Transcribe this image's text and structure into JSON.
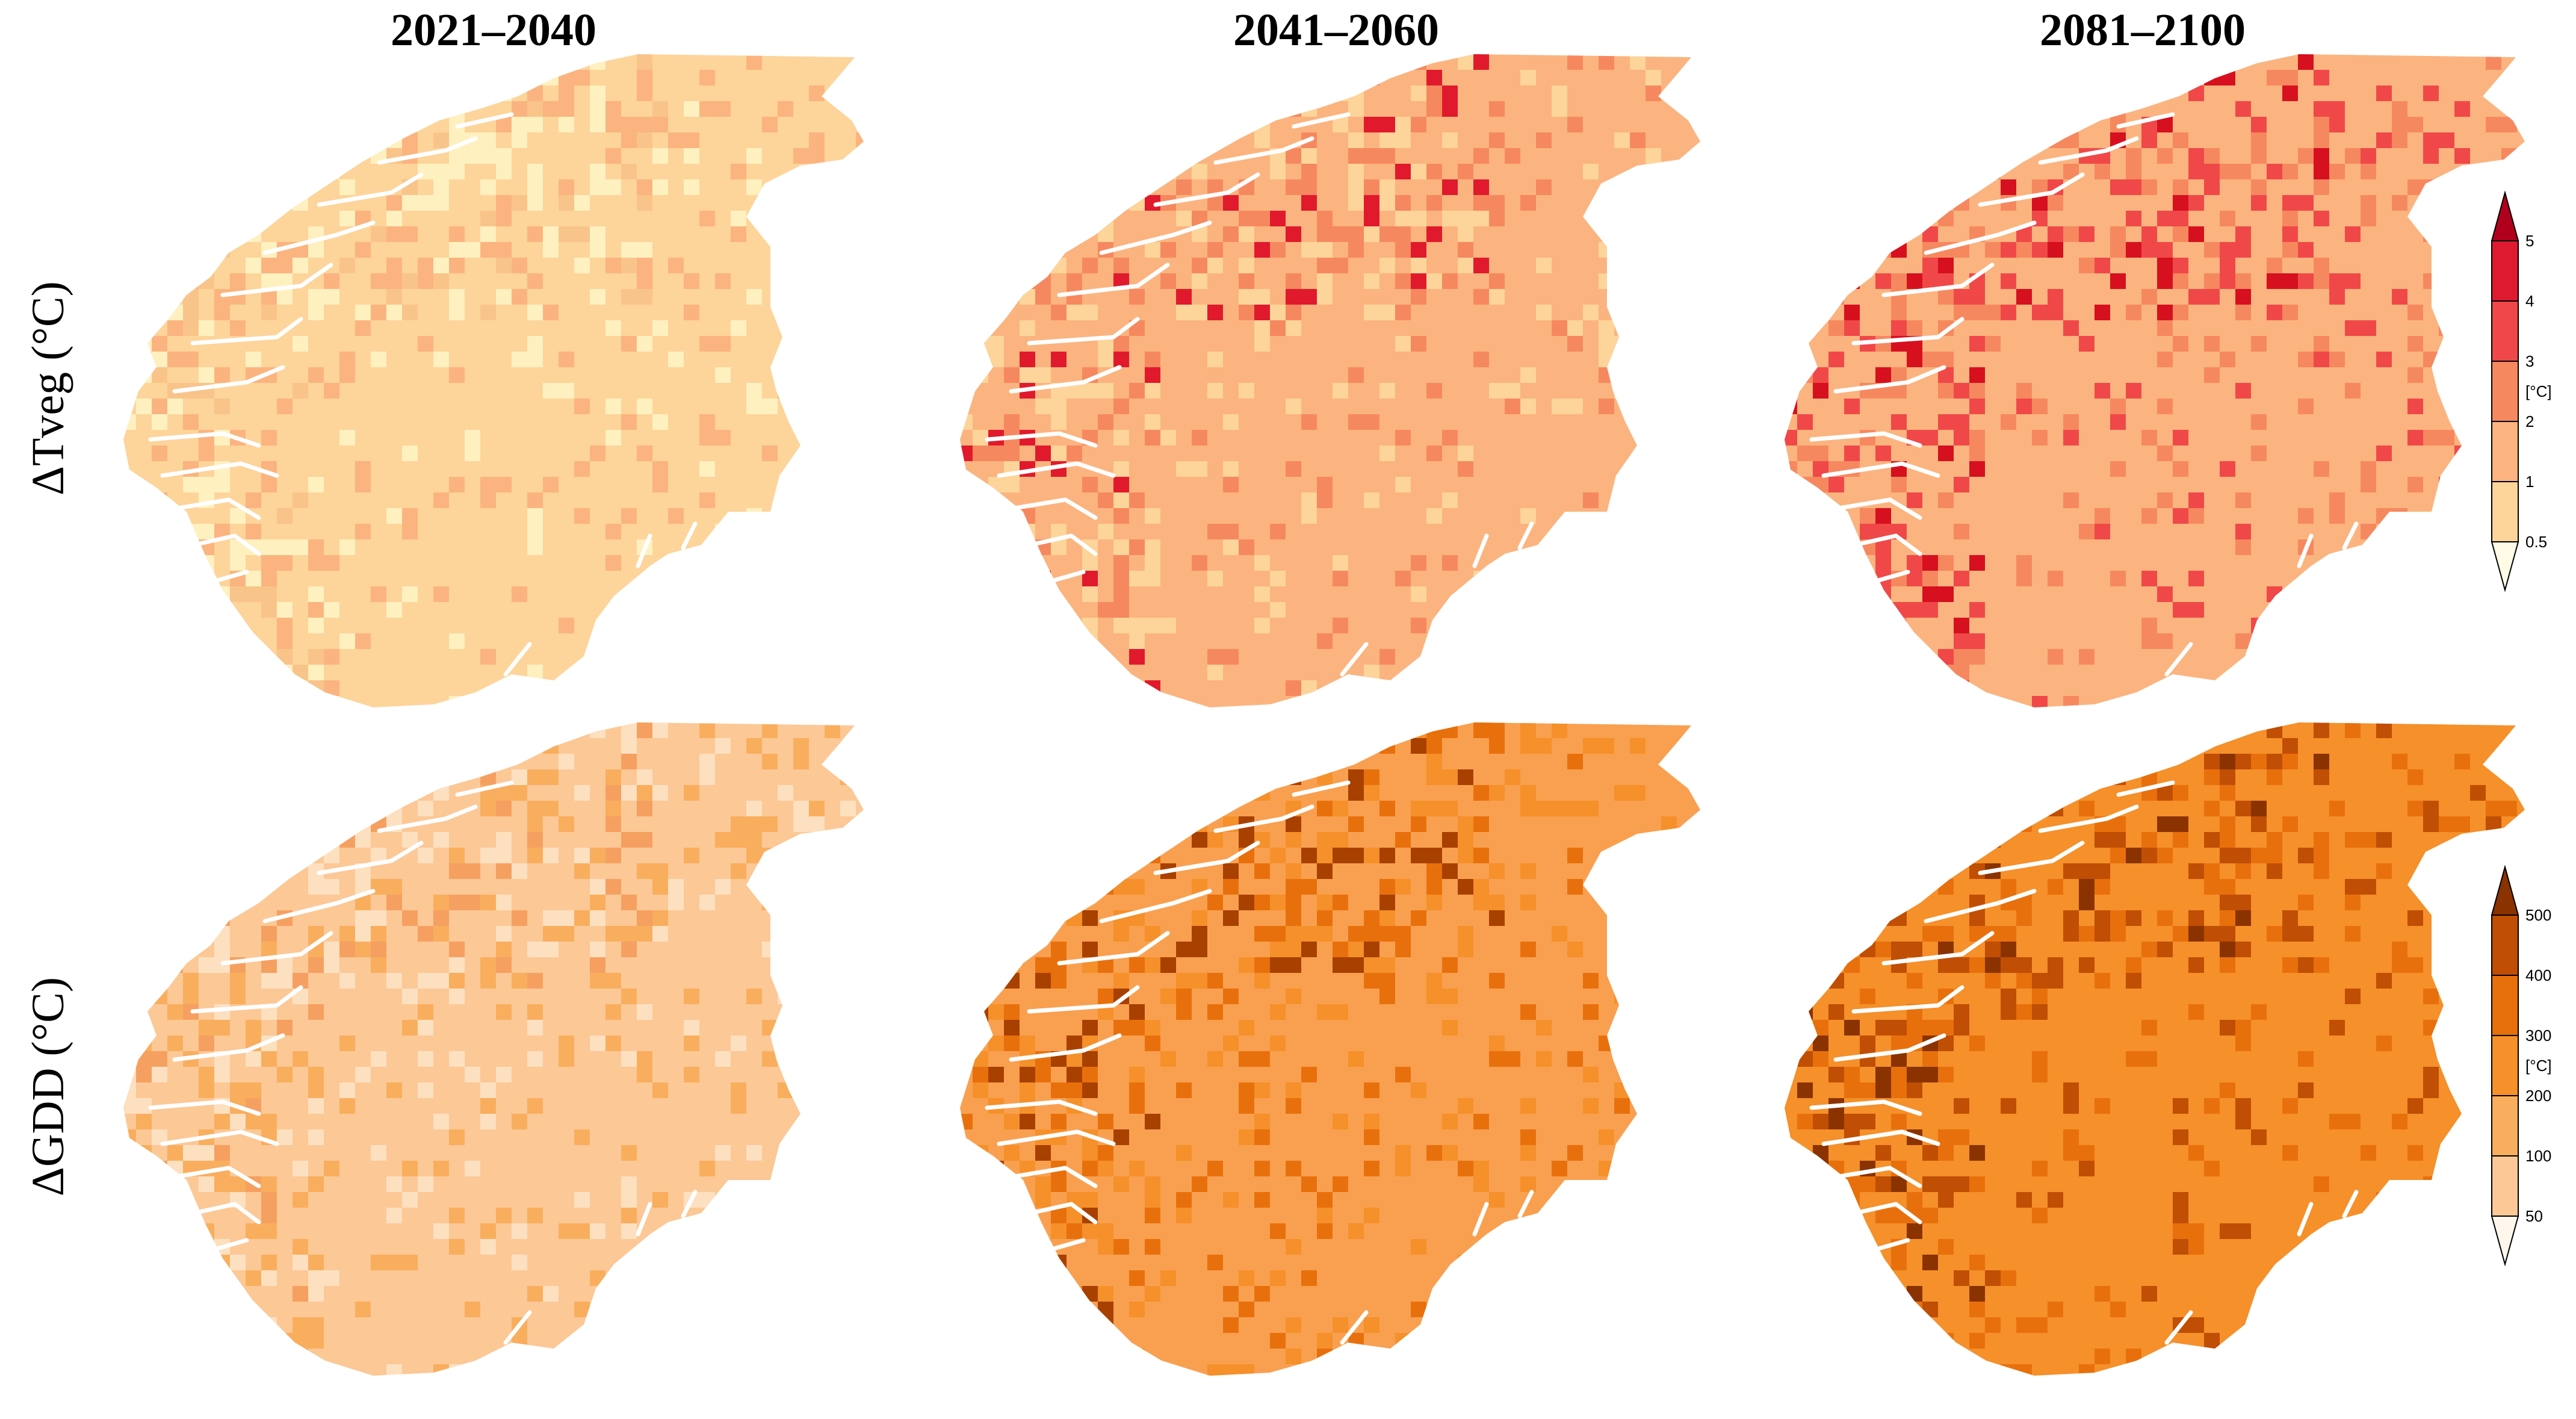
{
  "columns": [
    "2021–2040",
    "2041–2060",
    "2081–2100"
  ],
  "rows": [
    "ΔTveg (°C)",
    "ΔGDD (°C)"
  ],
  "colorbars": [
    {
      "unit": "[°C]",
      "ticks": [
        "5",
        "4",
        "3",
        "2",
        "1",
        "0.5"
      ],
      "colors": [
        "#b0001e",
        "#de1a30",
        "#f04848",
        "#f6885f",
        "#fbb47f",
        "#fdd49a",
        "#fffbe6"
      ]
    },
    {
      "unit": "[°C]",
      "ticks": [
        "500",
        "400",
        "300",
        "200",
        "100",
        "50"
      ],
      "colors": [
        "#8a3300",
        "#c04e04",
        "#e8700c",
        "#f5902a",
        "#f9ae5e",
        "#fcc896",
        "#fff7ec"
      ]
    }
  ],
  "maps": [
    {
      "row": 0,
      "col": 0,
      "base": "#fdd49a",
      "spots": [
        "#fbb47f",
        "#fff0c0",
        "#f9c48a"
      ]
    },
    {
      "row": 0,
      "col": 1,
      "base": "#fbb47f",
      "spots": [
        "#fdd49a",
        "#f6885f",
        "#e01a2c"
      ]
    },
    {
      "row": 0,
      "col": 2,
      "base": "#fbb47f",
      "spots": [
        "#f6885f",
        "#f04848",
        "#d6101f"
      ]
    },
    {
      "row": 1,
      "col": 0,
      "base": "#fcc896",
      "spots": [
        "#f9ae5e",
        "#fde0c0",
        "#f5a060"
      ]
    },
    {
      "row": 1,
      "col": 1,
      "base": "#f9a050",
      "spots": [
        "#f5902a",
        "#e8700c",
        "#a84000"
      ]
    },
    {
      "row": 1,
      "col": 2,
      "base": "#f5902a",
      "spots": [
        "#e8700c",
        "#c04e04",
        "#8a3300"
      ]
    }
  ]
}
